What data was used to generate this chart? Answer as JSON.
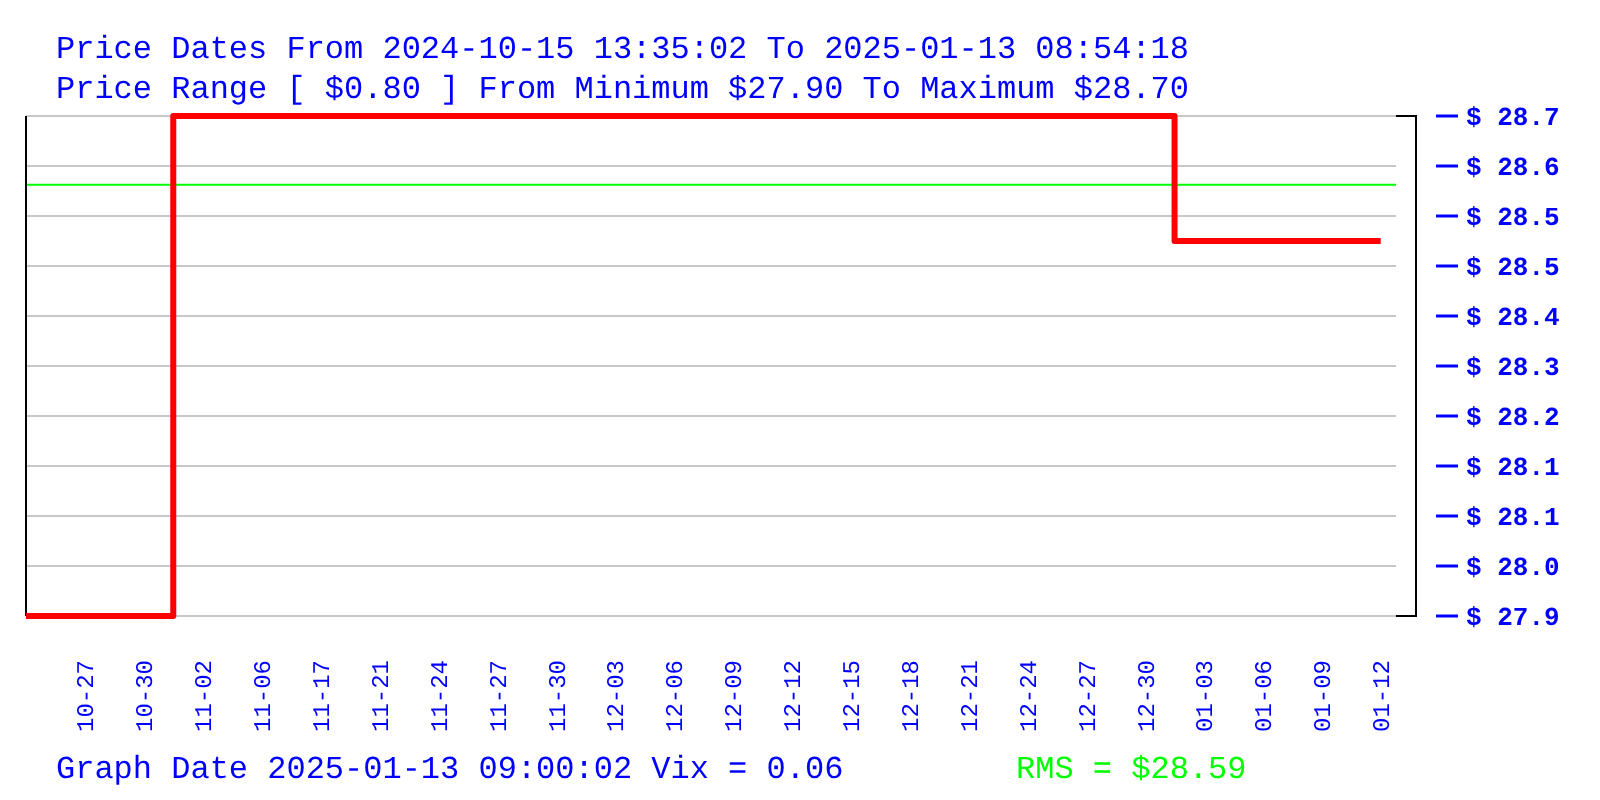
{
  "chart_data": {
    "type": "step",
    "title": "Price Dates From 2024-10-15 13:35:02 To 2025-01-13 08:54:18",
    "subtitle": "Price Range [ $0.80 ] From Minimum $27.90 To Maximum $28.70",
    "annotations": [
      "Graph Date 2025-01-13 09:00:02 Vix = 0.06"
    ],
    "categories": [
      null,
      "10-27",
      "10-30",
      "11-02",
      "11-06",
      "11-17",
      "11-21",
      "11-24",
      "11-27",
      "11-30",
      "12-03",
      "12-06",
      "12-09",
      "12-12",
      "12-15",
      "12-18",
      "12-21",
      "12-24",
      "12-27",
      "12-30",
      "01-03",
      "01-06",
      "01-09",
      "01-12"
    ],
    "series": [
      {
        "color": "#ff0000",
        "values": [
          27.9,
          27.9,
          27.9,
          28.7,
          28.7,
          28.7,
          28.7,
          28.7,
          28.7,
          28.7,
          28.7,
          28.7,
          28.7,
          28.7,
          28.7,
          28.7,
          28.7,
          28.7,
          28.7,
          28.7,
          28.5,
          28.5,
          28.5,
          28.5
        ]
      }
    ],
    "ylim": [
      27.9,
      28.7
    ],
    "yticks": [
      {
        "value": 27.9,
        "label": "$ 27.9"
      },
      {
        "value": 27.98,
        "label": "$ 28.0"
      },
      {
        "value": 28.06,
        "label": "$ 28.1"
      },
      {
        "value": 28.14,
        "label": "$ 28.1"
      },
      {
        "value": 28.22,
        "label": "$ 28.2"
      },
      {
        "value": 28.3,
        "label": "$ 28.3"
      },
      {
        "value": 28.38,
        "label": "$ 28.4"
      },
      {
        "value": 28.46,
        "label": "$ 28.5"
      },
      {
        "value": 28.54,
        "label": "$ 28.5"
      },
      {
        "value": 28.62,
        "label": "$ 28.6"
      },
      {
        "value": 28.7,
        "label": "$ 28.7"
      }
    ],
    "grid": "y",
    "ref_lines": [
      {
        "axis": "y",
        "value": 28.59,
        "label": "RMS = $28.59",
        "color": "#00ff00"
      }
    ]
  }
}
